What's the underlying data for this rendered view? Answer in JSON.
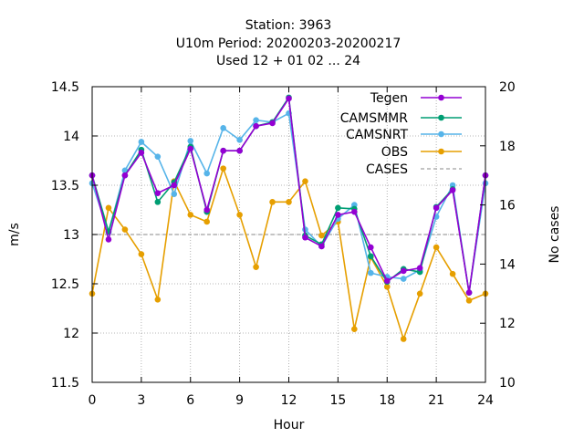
{
  "chart_data": {
    "type": "line",
    "title_lines": [
      "Station:     3963",
      "U10m   Period: 20200203-20200217",
      "Used  12 + 01 02 ... 24"
    ],
    "xlabel": "Hour",
    "ylabel": "m/s",
    "y2label": "No cases",
    "xlim": [
      0,
      24
    ],
    "ylim": [
      11.5,
      14.5
    ],
    "y2lim": [
      10,
      20
    ],
    "x_ticks": [
      0,
      3,
      6,
      9,
      12,
      15,
      18,
      21,
      24
    ],
    "y_ticks": [
      11.5,
      12,
      12.5,
      13,
      13.5,
      14,
      14.5
    ],
    "y2_ticks": [
      10,
      12,
      14,
      16,
      18,
      20
    ],
    "x_tick_labels": [
      "0",
      "3",
      "6",
      "9",
      "12",
      "15",
      "18",
      "21",
      "24"
    ],
    "y_tick_labels": [
      "11.5",
      "12",
      "12.5",
      "13",
      "13.5",
      "14",
      "14.5"
    ],
    "y2_tick_labels": [
      "10",
      "12",
      "14",
      "16",
      "18",
      "20"
    ],
    "grid": true,
    "legend_position": "top-right",
    "x": [
      0,
      1,
      2,
      3,
      4,
      5,
      6,
      7,
      8,
      9,
      10,
      11,
      12,
      13,
      14,
      15,
      16,
      17,
      18,
      19,
      20,
      21,
      22,
      23,
      24
    ],
    "series": [
      {
        "name": "Tegen",
        "color": "#9400d3",
        "marker": "circle",
        "axis": "y1",
        "values": [
          13.6,
          12.95,
          13.6,
          13.83,
          13.42,
          13.5,
          13.87,
          13.25,
          13.85,
          13.85,
          14.1,
          14.13,
          14.38,
          12.97,
          12.88,
          13.2,
          13.23,
          12.87,
          12.53,
          12.63,
          12.66,
          13.27,
          13.45,
          12.41,
          13.6
        ]
      },
      {
        "name": "CAMSMMR",
        "color": "#009e73",
        "marker": "circle",
        "axis": "y1",
        "values": [
          13.6,
          13.03,
          13.6,
          13.86,
          13.33,
          13.53,
          13.89,
          13.23,
          13.85,
          13.85,
          14.1,
          14.14,
          14.39,
          12.99,
          12.9,
          13.27,
          13.26,
          12.78,
          12.52,
          12.65,
          12.62,
          13.28,
          13.46,
          12.41,
          13.6
        ]
      },
      {
        "name": "CAMSNRT",
        "color": "#56b4e9",
        "marker": "circle",
        "axis": "y1",
        "values": [
          13.52,
          13.02,
          13.65,
          13.94,
          13.79,
          13.41,
          13.95,
          13.62,
          14.08,
          13.96,
          14.16,
          14.14,
          14.23,
          13.05,
          12.88,
          13.16,
          13.3,
          12.61,
          12.57,
          12.55,
          12.64,
          13.18,
          13.5,
          12.41,
          13.52
        ]
      },
      {
        "name": "OBS",
        "color": "#e69f00",
        "marker": "circle",
        "axis": "y1",
        "values": [
          12.4,
          13.27,
          13.05,
          12.8,
          12.34,
          13.54,
          13.2,
          13.13,
          13.67,
          13.2,
          12.67,
          13.33,
          13.33,
          13.54,
          12.99,
          13.13,
          12.04,
          12.77,
          12.47,
          11.94,
          12.4,
          12.87,
          12.6,
          12.33,
          12.4
        ]
      },
      {
        "name": "CASES",
        "color": "#a0a0a0",
        "marker": "none",
        "dash": "dashed",
        "axis": "y2",
        "values": [
          15,
          15,
          15,
          15,
          15,
          15,
          15,
          15,
          15,
          15,
          15,
          15,
          15,
          15,
          15,
          15,
          15,
          15,
          15,
          15,
          15,
          15,
          15,
          15,
          15
        ]
      }
    ]
  }
}
